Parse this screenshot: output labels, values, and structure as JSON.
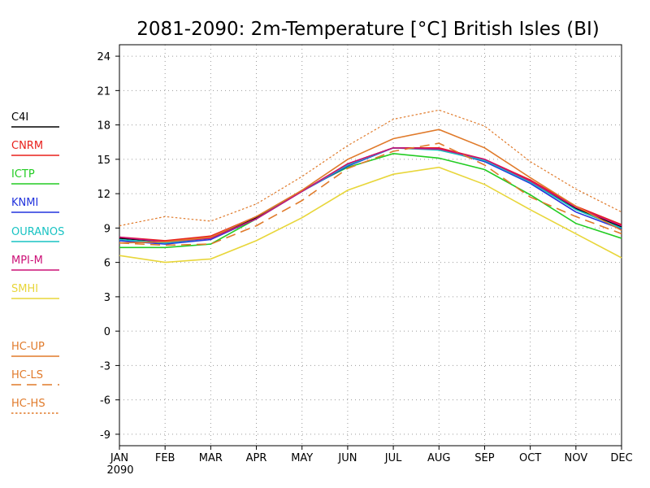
{
  "chart_data": {
    "type": "line",
    "title": "2081-2090: 2m-Temperature [°C] British Isles (BI)",
    "xlabel": "",
    "ylabel": "",
    "categories": [
      "JAN",
      "FEB",
      "MAR",
      "APR",
      "MAY",
      "JUN",
      "JUL",
      "AUG",
      "SEP",
      "OCT",
      "NOV",
      "DEC"
    ],
    "x_year_label": "2090",
    "yticks": [
      -9,
      -6,
      -3,
      0,
      3,
      6,
      9,
      12,
      15,
      18,
      21,
      24
    ],
    "ylim": [
      -10,
      25
    ],
    "grid": true,
    "legend_placement": "left",
    "series": [
      {
        "name": "C4I",
        "color": "#000000",
        "dash": "solid",
        "values": [
          8.1,
          7.8,
          8.2,
          9.9,
          12.2,
          14.6,
          16.0,
          15.9,
          14.9,
          13.0,
          10.7,
          9.1
        ]
      },
      {
        "name": "CNRM",
        "color": "#e8201c",
        "dash": "solid",
        "values": [
          8.2,
          7.9,
          8.3,
          10.0,
          12.2,
          14.6,
          16.0,
          16.0,
          15.0,
          13.2,
          10.9,
          9.3
        ]
      },
      {
        "name": "ICTP",
        "color": "#22cc22",
        "dash": "solid",
        "values": [
          7.3,
          7.3,
          7.6,
          9.8,
          12.3,
          14.3,
          15.5,
          15.1,
          14.1,
          11.9,
          9.4,
          8.1
        ]
      },
      {
        "name": "KNMI",
        "color": "#2233dd",
        "dash": "solid",
        "values": [
          7.9,
          7.6,
          8.0,
          9.8,
          12.2,
          14.4,
          16.0,
          15.9,
          14.8,
          12.9,
          10.4,
          8.9
        ]
      },
      {
        "name": "OURANOS",
        "color": "#19c3c3",
        "dash": "solid",
        "values": [
          8.0,
          7.7,
          8.1,
          9.8,
          12.2,
          14.5,
          16.0,
          15.8,
          14.9,
          13.0,
          10.6,
          9.0
        ]
      },
      {
        "name": "MPI-M",
        "color": "#cc1177",
        "dash": "solid",
        "values": [
          8.2,
          7.8,
          8.1,
          9.8,
          12.2,
          14.6,
          16.0,
          15.9,
          15.0,
          13.1,
          10.8,
          9.2
        ]
      },
      {
        "name": "SMHI",
        "color": "#e8d63a",
        "dash": "solid",
        "values": [
          6.6,
          6.0,
          6.3,
          7.9,
          9.9,
          12.3,
          13.7,
          14.3,
          12.8,
          10.6,
          8.5,
          6.4
        ]
      },
      {
        "name": "HC-UP",
        "color": "#e07a2a",
        "dash": "solid",
        "values": [
          7.7,
          7.8,
          8.2,
          10.0,
          12.3,
          15.0,
          16.8,
          17.6,
          16.0,
          13.4,
          10.9,
          8.8
        ]
      },
      {
        "name": "HC-LS",
        "color": "#e07a2a",
        "dash": "long",
        "values": [
          7.7,
          7.5,
          7.6,
          9.2,
          11.4,
          14.2,
          15.7,
          16.4,
          14.5,
          11.7,
          10.0,
          8.5
        ]
      },
      {
        "name": "HC-HS",
        "color": "#e07a2a",
        "dash": "short",
        "values": [
          9.2,
          10.0,
          9.6,
          11.1,
          13.5,
          16.2,
          18.5,
          19.3,
          17.9,
          14.8,
          12.4,
          10.4
        ]
      }
    ]
  }
}
